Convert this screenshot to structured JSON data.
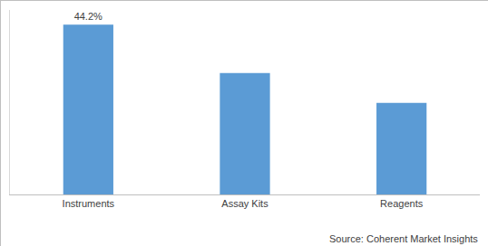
{
  "chart_data": {
    "type": "bar",
    "categories": [
      "Instruments",
      "Assay Kits",
      "Reagents"
    ],
    "values": [
      44.2,
      31.6,
      23.8
    ],
    "value_labels": [
      "44.2%",
      null,
      null
    ],
    "data_labels": true,
    "color": "#5b9bd5",
    "ylim": [
      0,
      48
    ],
    "tick_labels": "x",
    "grid": false,
    "source": "Source: Coherent Market Insights"
  }
}
